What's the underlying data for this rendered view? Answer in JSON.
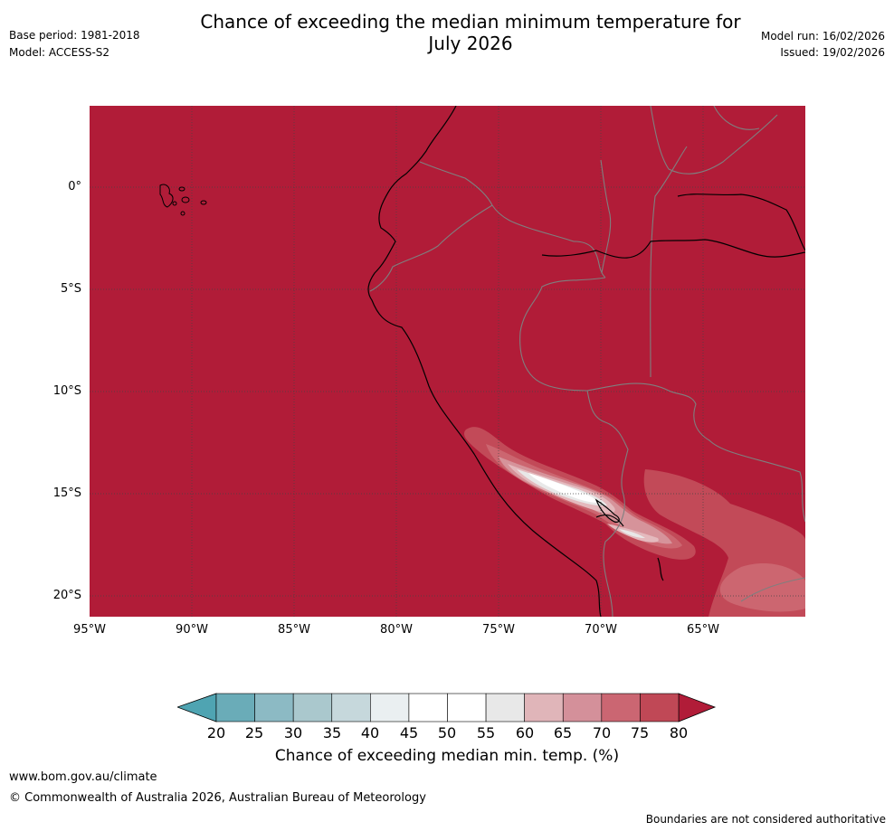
{
  "header": {
    "title_line1": "Chance of exceeding the median minimum temperature for",
    "title_line2": "July 2026",
    "base_period": "Base period: 1981-2018",
    "model": "Model: ACCESS-S2",
    "model_run": "Model run: 16/02/2026",
    "issued": "Issued: 19/02/2026"
  },
  "map": {
    "lat_labels": [
      "0°",
      "5°S",
      "10°S",
      "15°S",
      "20°S"
    ],
    "lon_labels": [
      "95°W",
      "90°W",
      "85°W",
      "80°W",
      "75°W",
      "70°W",
      "65°W"
    ],
    "colors": {
      "background": "#b11c38",
      "class_75_80": "#c24a58",
      "class_70_75": "#cc6670",
      "class_65_70": "#d6939a",
      "class_60_65": "#e4b9bd",
      "class_55_60": "#e8e8e8",
      "class_50_55": "#ffffff",
      "coast": "#000000",
      "border": "#7f7f7f",
      "grid": "#444444"
    }
  },
  "colorbar": {
    "ticks": [
      "20",
      "25",
      "30",
      "35",
      "40",
      "45",
      "50",
      "55",
      "60",
      "65",
      "70",
      "75",
      "80"
    ],
    "colors": [
      "#6aacb8",
      "#8cbac4",
      "#aac8cd",
      "#c6d8dc",
      "#eaeff1",
      "#ffffff",
      "#ffffff",
      "#e8e8e8",
      "#e0b5b9",
      "#d4909a",
      "#cb6672",
      "#c04856"
    ],
    "under_color": "#4fa4b2",
    "over_color": "#b11c38",
    "label": "Chance of exceeding median min. temp. (%)"
  },
  "footer": {
    "website": "www.bom.gov.au/climate",
    "copyright": "© Commonwealth of Australia 2026, Australian Bureau of Meteorology",
    "disclaimer": "Boundaries are not considered authoritative"
  }
}
